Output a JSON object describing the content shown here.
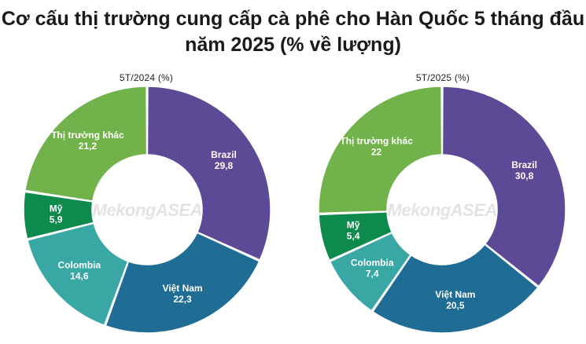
{
  "title": "Cơ cấu thị trường cung cấp cà phê cho Hàn Quốc 5 tháng đầu năm 2025 (% về lượng)",
  "watermark": ".MekongASEAN",
  "colors": {
    "Brazil": "#5c4a97",
    "Việt Nam": "#1f6c94",
    "Colombia": "#39a7a3",
    "Mỹ": "#0e8a4c",
    "Thị trường khác": "#72b24a"
  },
  "chart_data": [
    {
      "type": "pie",
      "subtitle": "5T/2024 (%)",
      "series": [
        {
          "label": "Brazil",
          "value": "29,8",
          "v": 29.8
        },
        {
          "label": "Việt Nam",
          "value": "22,3",
          "v": 22.3
        },
        {
          "label": "Colombia",
          "value": "14,6",
          "v": 14.6
        },
        {
          "label": "Mỹ",
          "value": "5,9",
          "v": 5.9
        },
        {
          "label": "Thị trường khác",
          "value": "21,2",
          "v": 21.2
        }
      ]
    },
    {
      "type": "pie",
      "subtitle": "5T/2025 (%)",
      "series": [
        {
          "label": "Brazil",
          "value": "30,8",
          "v": 30.8
        },
        {
          "label": "Việt Nam",
          "value": "20,5",
          "v": 20.5
        },
        {
          "label": "Colombia",
          "value": "7,4",
          "v": 7.4
        },
        {
          "label": "Mỹ",
          "value": "5,4",
          "v": 5.4
        },
        {
          "label": "Thị trường khác",
          "value": "22",
          "v": 22
        }
      ]
    }
  ]
}
